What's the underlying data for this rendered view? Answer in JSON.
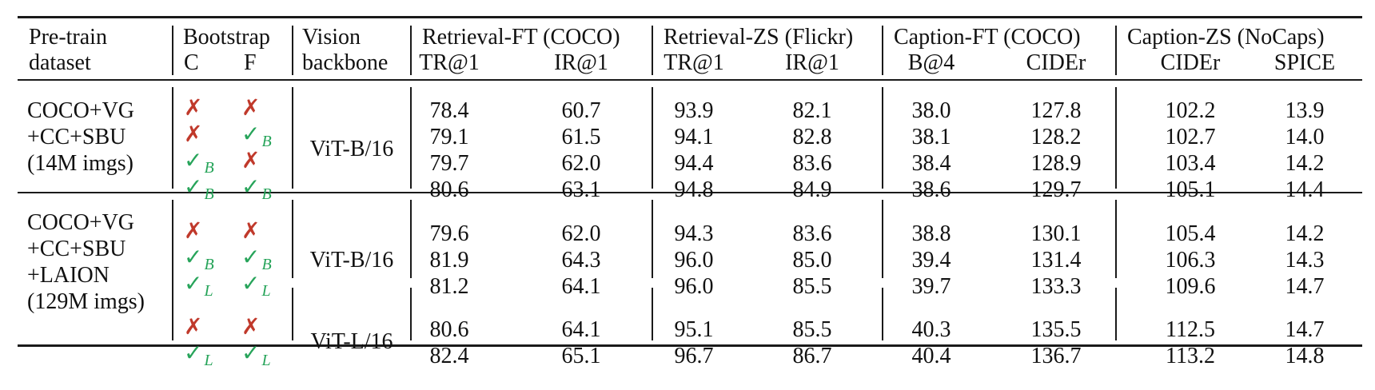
{
  "headers": {
    "pretrain": [
      "Pre-train",
      "dataset"
    ],
    "bootstrap": "Bootstrap",
    "bootstrap_c": "C",
    "bootstrap_f": "F",
    "vision": [
      "Vision",
      "backbone"
    ],
    "groups": [
      "Retrieval-FT (COCO)",
      "Retrieval-ZS (Flickr)",
      "Caption-FT (COCO)",
      "Caption-ZS (NoCaps)"
    ],
    "metrics": [
      "TR@1",
      "IR@1",
      "TR@1",
      "IR@1",
      "B@4",
      "CIDEr",
      "CIDEr",
      "SPICE"
    ]
  },
  "sections": [
    {
      "dataset": [
        "COCO+VG",
        "+CC+SBU",
        "(14M imgs)"
      ],
      "blocks": [
        {
          "backbone": "ViT-B/16",
          "rows": [
            {
              "c": "✗",
              "c_sub": "",
              "f": "✗",
              "f_sub": "",
              "values": [
                "78.4",
                "60.7",
                "93.9",
                "82.1",
                "38.0",
                "127.8",
                "102.2",
                "13.9"
              ]
            },
            {
              "c": "✗",
              "c_sub": "",
              "f": "✓",
              "f_sub": "B",
              "values": [
                "79.1",
                "61.5",
                "94.1",
                "82.8",
                "38.1",
                "128.2",
                "102.7",
                "14.0"
              ]
            },
            {
              "c": "✓",
              "c_sub": "B",
              "f": "✗",
              "f_sub": "",
              "values": [
                "79.7",
                "62.0",
                "94.4",
                "83.6",
                "38.4",
                "128.9",
                "103.4",
                "14.2"
              ]
            },
            {
              "c": "✓",
              "c_sub": "B",
              "f": "✓",
              "f_sub": "B",
              "values": [
                "80.6",
                "63.1",
                "94.8",
                "84.9",
                "38.6",
                "129.7",
                "105.1",
                "14.4"
              ]
            }
          ]
        }
      ]
    },
    {
      "dataset": [
        "COCO+VG",
        "+CC+SBU",
        "+LAION",
        "(129M imgs)"
      ],
      "blocks": [
        {
          "backbone": "ViT-B/16",
          "rows": [
            {
              "c": "✗",
              "c_sub": "",
              "f": "✗",
              "f_sub": "",
              "values": [
                "79.6",
                "62.0",
                "94.3",
                "83.6",
                "38.8",
                "130.1",
                "105.4",
                "14.2"
              ]
            },
            {
              "c": "✓",
              "c_sub": "B",
              "f": "✓",
              "f_sub": "B",
              "values": [
                "81.9",
                "64.3",
                "96.0",
                "85.0",
                "39.4",
                "131.4",
                "106.3",
                "14.3"
              ]
            },
            {
              "c": "✓",
              "c_sub": "L",
              "f": "✓",
              "f_sub": "L",
              "values": [
                "81.2",
                "64.1",
                "96.0",
                "85.5",
                "39.7",
                "133.3",
                "109.6",
                "14.7"
              ]
            }
          ]
        },
        {
          "backbone": "ViT-L/16",
          "rows": [
            {
              "c": "✗",
              "c_sub": "",
              "f": "✗",
              "f_sub": "",
              "values": [
                "80.6",
                "64.1",
                "95.1",
                "85.5",
                "40.3",
                "135.5",
                "112.5",
                "14.7"
              ]
            },
            {
              "c": "✓",
              "c_sub": "L",
              "f": "✓",
              "f_sub": "L",
              "values": [
                "82.4",
                "65.1",
                "96.7",
                "86.7",
                "40.4",
                "136.7",
                "113.2",
                "14.8"
              ]
            }
          ]
        }
      ]
    }
  ]
}
